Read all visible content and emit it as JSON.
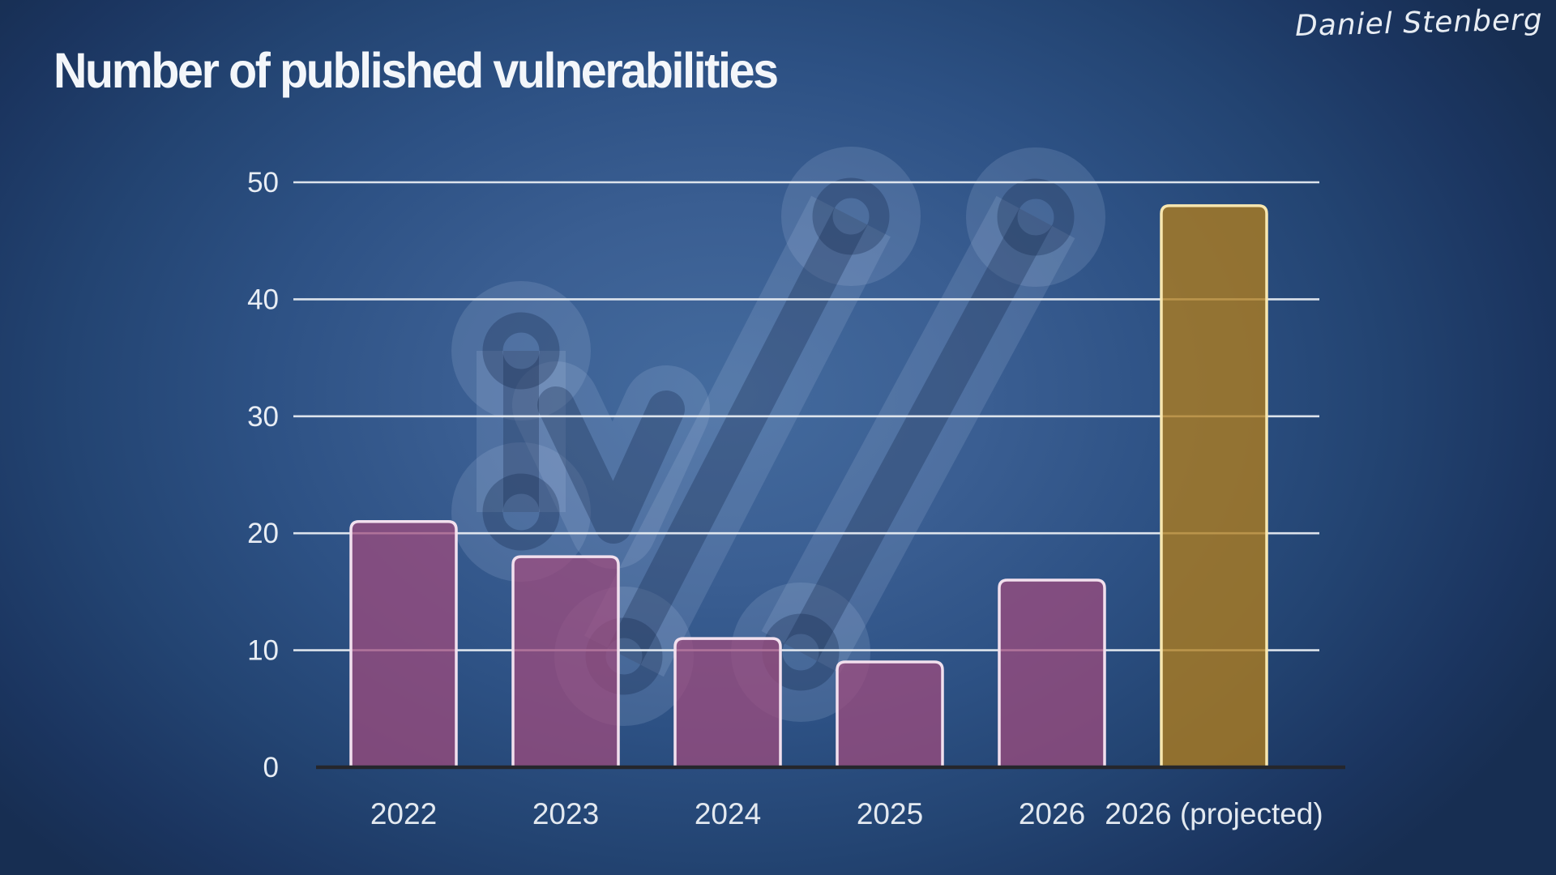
{
  "slide": {
    "title": "Number of published vulnerabilities",
    "author": "Daniel Stenberg"
  },
  "icons": {
    "watermark": "connector-slashes-logo-watermark"
  },
  "colors": {
    "background_center": "#446b9e",
    "background_edge": "#172e52",
    "bar_fill": "rgba(159,75,125,0.74)",
    "bar_stroke": "#f2e0ee",
    "highlight_fill": "rgba(177,126,30,0.78)",
    "highlight_stroke": "#f8e7b0",
    "gridline": "rgba(230,235,241,0.95)",
    "axis_line": "#25262c",
    "tick_label": "#e8edf4",
    "title_text": "#f3f6fa"
  },
  "chart_data": {
    "type": "bar",
    "title": "Number of published vulnerabilities",
    "categories": [
      "2022",
      "2023",
      "2024",
      "2025",
      "2026",
      "2026 (projected)"
    ],
    "values": [
      21,
      18,
      11,
      9,
      16,
      48
    ],
    "highlight_category": "2026 (projected)",
    "highlight_index": 5,
    "xlabel": "",
    "ylabel": "",
    "ylim": [
      0,
      50
    ],
    "yticks": [
      0,
      10,
      20,
      30,
      40,
      50
    ],
    "grid": true,
    "legend": false
  }
}
